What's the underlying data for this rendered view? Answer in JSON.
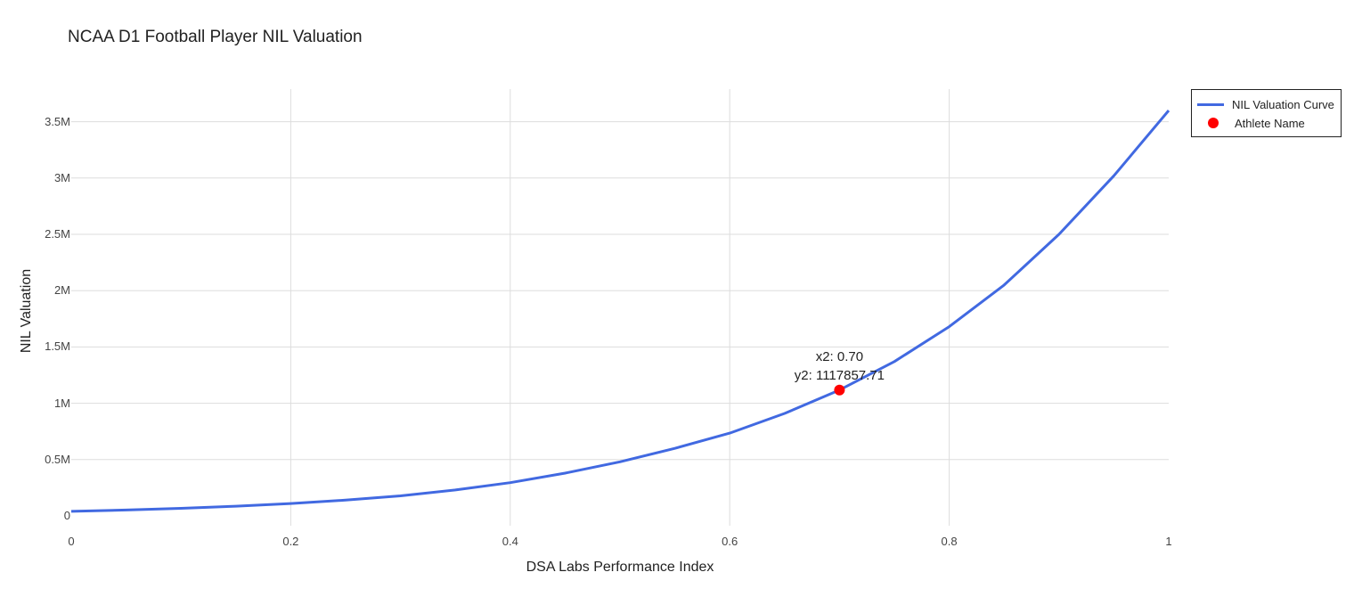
{
  "chart_data": {
    "type": "line",
    "title": "NCAA D1 Football Player NIL Valuation",
    "xlabel": "DSA Labs Performance Index",
    "ylabel": "NIL Valuation",
    "xlim": [
      0,
      1
    ],
    "ylim": [
      -60000,
      3800000
    ],
    "grid": true,
    "legend_position": "top-right-outside",
    "x_ticks": [
      "0",
      "0.2",
      "0.4",
      "0.6",
      "0.8",
      "1"
    ],
    "y_ticks": [
      "0",
      "0.5M",
      "1M",
      "1.5M",
      "2M",
      "2.5M",
      "3M",
      "3.5M"
    ],
    "series": [
      {
        "name": "NIL Valuation Curve",
        "type": "line",
        "color": "#4169e1",
        "x": [
          0,
          0.05,
          0.1,
          0.15,
          0.2,
          0.25,
          0.3,
          0.35,
          0.4,
          0.45,
          0.5,
          0.55,
          0.6,
          0.65,
          0.7,
          0.75,
          0.8,
          0.85,
          0.9,
          0.95,
          1.0
        ],
        "values": [
          40000,
          52000,
          67000,
          86000,
          110000,
          140000,
          178000,
          230000,
          295000,
          380000,
          480000,
          600000,
          735000,
          910000,
          1117858,
          1370000,
          1680000,
          2050000,
          2500000,
          3020000,
          3600000
        ]
      },
      {
        "name": "Athlete Name",
        "type": "scatter",
        "color": "#ff0000",
        "x": [
          0.7
        ],
        "values": [
          1117857.71
        ]
      }
    ],
    "annotations": [
      {
        "text_line1": "x2: 0.70",
        "text_line2": "y2: 1117857.71",
        "x": 0.7,
        "y": 1117857.71
      }
    ]
  },
  "legend": {
    "items": [
      {
        "label": "NIL Valuation Curve",
        "marker": "line",
        "color": "#4169e1"
      },
      {
        "label": "Athlete Name",
        "marker": "dot",
        "color": "#ff0000"
      }
    ]
  },
  "annotation": {
    "line1": "x2: 0.70",
    "line2": "y2: 1117857.71"
  }
}
